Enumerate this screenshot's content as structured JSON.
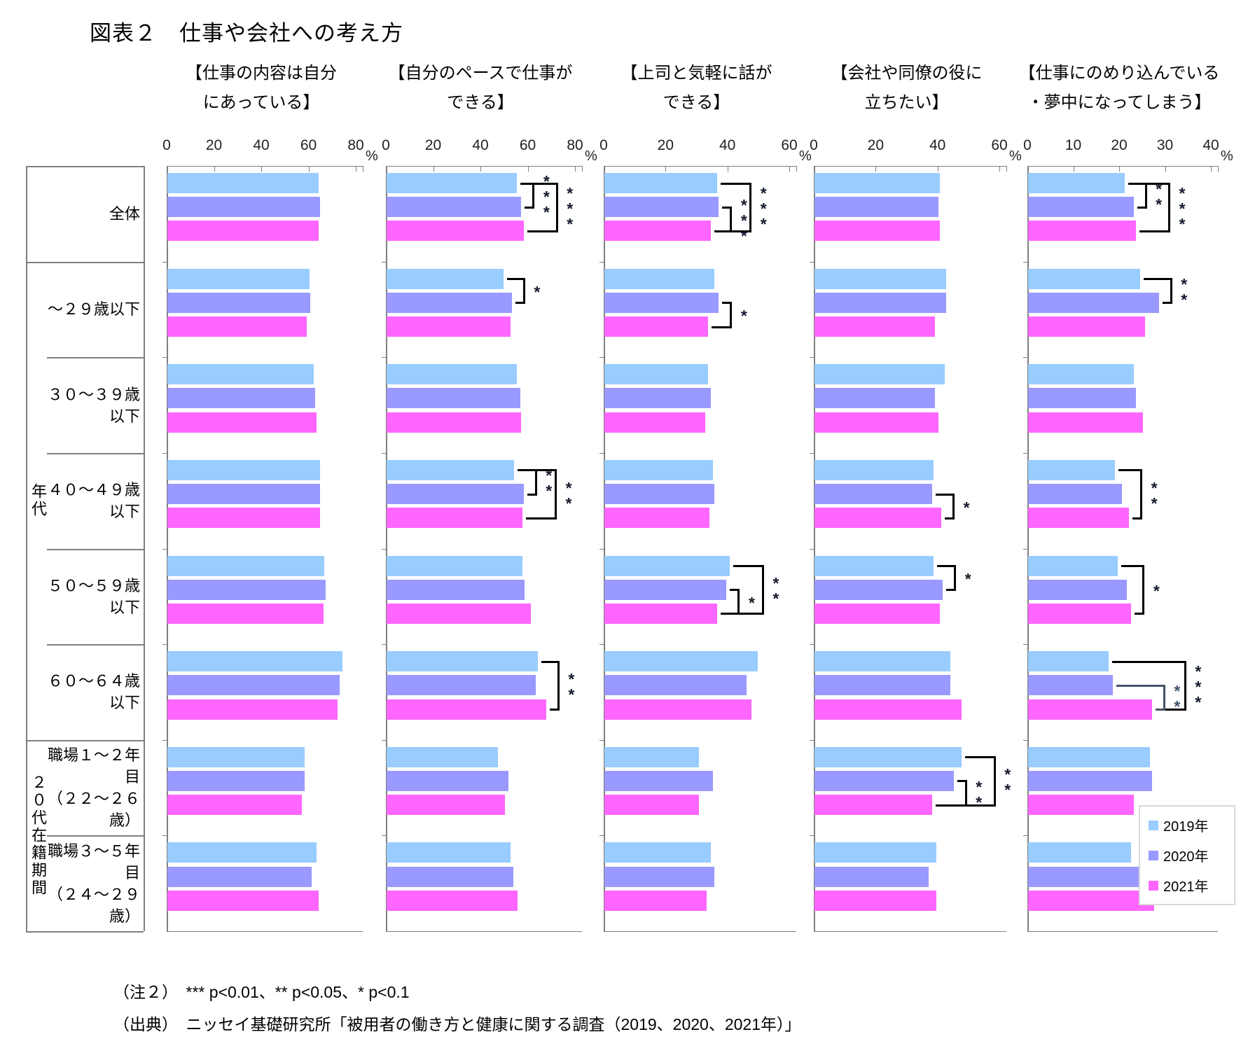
{
  "title": "図表２　仕事や会社への考え方",
  "notes": {
    "note2": "（注２）　*** p<0.01、** p<0.05、* p<0.1",
    "source": "（出典）　ニッセイ基礎研究所「被用者の働き方と健康に関する調査（2019、2020、2021年）」"
  },
  "legend": {
    "items": [
      {
        "label": "2019年",
        "color": "#99CCFF"
      },
      {
        "label": "2020年",
        "color": "#9999FF"
      },
      {
        "label": "2021年",
        "color": "#FF66FF"
      }
    ]
  },
  "row_groups": [
    {
      "label": "年代",
      "start_row": 1,
      "end_row": 6
    },
    {
      "label": "２０代在籍期間",
      "start_row": 6,
      "end_row": 8
    }
  ],
  "chart_data": {
    "type": "bar",
    "orientation": "horizontal",
    "grid": false,
    "legend_position": "right-bottom",
    "categories": [
      "全体",
      "～２９歳以下",
      "３０～３９歳以下",
      "４０～４９歳以下",
      "５０～５９歳以下",
      "６０～６４歳以下",
      "職場１～２年目\n（２２～２６歳）",
      "職場３～５年目\n（２４～２９歳）"
    ],
    "series_names": [
      "2019年",
      "2020年",
      "2021年"
    ],
    "series_colors": [
      "#99CCFF",
      "#9999FF",
      "#FF66FF"
    ],
    "sig_note": "*** p<0.01, ** p<0.05, * p<0.1; pair indices refer to series 0=2019, 1=2020, 2=2021",
    "panels": [
      {
        "title": "【仕事の内容は自分\nにあっている】",
        "xlim": [
          0,
          80
        ],
        "ticks": [
          0,
          20,
          40,
          60,
          80
        ],
        "unit": "%",
        "values": [
          [
            64,
            64.5,
            64
          ],
          [
            60,
            60.5,
            59
          ],
          [
            62,
            62.5,
            63
          ],
          [
            64.5,
            64.5,
            64.5
          ],
          [
            66.5,
            67,
            66
          ],
          [
            74,
            73,
            72
          ],
          [
            58,
            58,
            57
          ],
          [
            63,
            61,
            64
          ]
        ],
        "sig": []
      },
      {
        "title": "【自分のペースで仕事が\nできる】",
        "xlim": [
          0,
          80
        ],
        "ticks": [
          0,
          20,
          40,
          60,
          80
        ],
        "unit": "%",
        "values": [
          [
            55,
            57,
            58
          ],
          [
            49.5,
            53,
            52.5
          ],
          [
            55,
            56.5,
            57
          ],
          [
            54,
            58,
            57.5
          ],
          [
            57.5,
            58.5,
            61
          ],
          [
            64,
            63,
            67.5
          ],
          [
            47,
            51.5,
            50
          ],
          [
            52.5,
            53.5,
            55.5
          ]
        ],
        "sig": [
          {
            "row": 0,
            "pair": [
              0,
              1
            ],
            "label": "***",
            "level": 1
          },
          {
            "row": 0,
            "pair": [
              0,
              2
            ],
            "label": "***",
            "level": 2
          },
          {
            "row": 1,
            "pair": [
              0,
              1
            ],
            "label": "*",
            "level": 1
          },
          {
            "row": 3,
            "pair": [
              0,
              1
            ],
            "label": "**",
            "level": 1
          },
          {
            "row": 3,
            "pair": [
              0,
              2
            ],
            "label": "**",
            "level": 2
          },
          {
            "row": 5,
            "pair": [
              0,
              2
            ],
            "label": "**",
            "level": 1
          }
        ]
      },
      {
        "title": "【上司と気軽に話が\nできる】",
        "xlim": [
          0,
          60
        ],
        "ticks": [
          0,
          20,
          40,
          60
        ],
        "unit": "%",
        "values": [
          [
            36.5,
            37,
            34.5
          ],
          [
            35.5,
            37,
            33.5
          ],
          [
            33.5,
            34.5,
            32.5
          ],
          [
            35,
            35.5,
            34
          ],
          [
            40.5,
            39.5,
            36.5
          ],
          [
            49.5,
            46,
            47.5
          ],
          [
            30.5,
            35,
            30.5
          ],
          [
            34.5,
            35.5,
            33
          ]
        ],
        "sig": [
          {
            "row": 0,
            "pair": [
              0,
              2
            ],
            "label": "***",
            "level": 2
          },
          {
            "row": 0,
            "pair": [
              1,
              2
            ],
            "label": "***",
            "level": 1
          },
          {
            "row": 1,
            "pair": [
              1,
              2
            ],
            "label": "*",
            "level": 1
          },
          {
            "row": 4,
            "pair": [
              0,
              2
            ],
            "label": "**",
            "level": 2
          },
          {
            "row": 4,
            "pair": [
              1,
              2
            ],
            "label": "*",
            "level": 1
          }
        ]
      },
      {
        "title": "【会社や同僚の役に\n立ちたい】",
        "xlim": [
          0,
          60
        ],
        "ticks": [
          0,
          20,
          40,
          60
        ],
        "unit": "%",
        "values": [
          [
            40.5,
            40,
            40.5
          ],
          [
            42.5,
            42.5,
            39
          ],
          [
            42,
            39,
            40
          ],
          [
            38.5,
            38,
            41
          ],
          [
            38.5,
            41.5,
            40.5
          ],
          [
            44,
            44,
            47.5
          ],
          [
            47.5,
            45,
            38
          ],
          [
            39.5,
            37,
            39.5
          ]
        ],
        "sig": [
          {
            "row": 3,
            "pair": [
              1,
              2
            ],
            "label": "*",
            "level": 1
          },
          {
            "row": 4,
            "pair": [
              0,
              1
            ],
            "label": "*",
            "level": 1
          },
          {
            "row": 6,
            "pair": [
              0,
              2
            ],
            "label": "**",
            "level": 2
          },
          {
            "row": 6,
            "pair": [
              1,
              2
            ],
            "label": "**",
            "level": 1
          }
        ]
      },
      {
        "title": "【仕事にのめり込んでいる\n・夢中になってしまう】",
        "xlim": [
          0,
          40
        ],
        "ticks": [
          0,
          10,
          20,
          30,
          40
        ],
        "unit": "%",
        "values": [
          [
            21,
            23,
            23.5
          ],
          [
            24.5,
            28.5,
            25.5
          ],
          [
            23,
            23.5,
            25
          ],
          [
            19,
            20.5,
            22
          ],
          [
            19.5,
            21.5,
            22.5
          ],
          [
            17.5,
            18.5,
            27
          ],
          [
            26.5,
            27,
            23
          ],
          [
            22.5,
            26.5,
            27.5
          ]
        ],
        "sig": [
          {
            "row": 0,
            "pair": [
              0,
              1
            ],
            "label": "**",
            "level": 1
          },
          {
            "row": 0,
            "pair": [
              0,
              2
            ],
            "label": "***",
            "level": 2
          },
          {
            "row": 1,
            "pair": [
              0,
              1
            ],
            "label": "**",
            "level": 1
          },
          {
            "row": 3,
            "pair": [
              0,
              2
            ],
            "label": "**",
            "level": 1
          },
          {
            "row": 4,
            "pair": [
              0,
              2
            ],
            "label": "*",
            "level": 1
          },
          {
            "row": 5,
            "pair": [
              0,
              2
            ],
            "label": "***",
            "level": 2
          },
          {
            "row": 5,
            "pair": [
              1,
              2
            ],
            "label": "**",
            "level": 1,
            "color": "#44546A"
          }
        ]
      }
    ]
  }
}
